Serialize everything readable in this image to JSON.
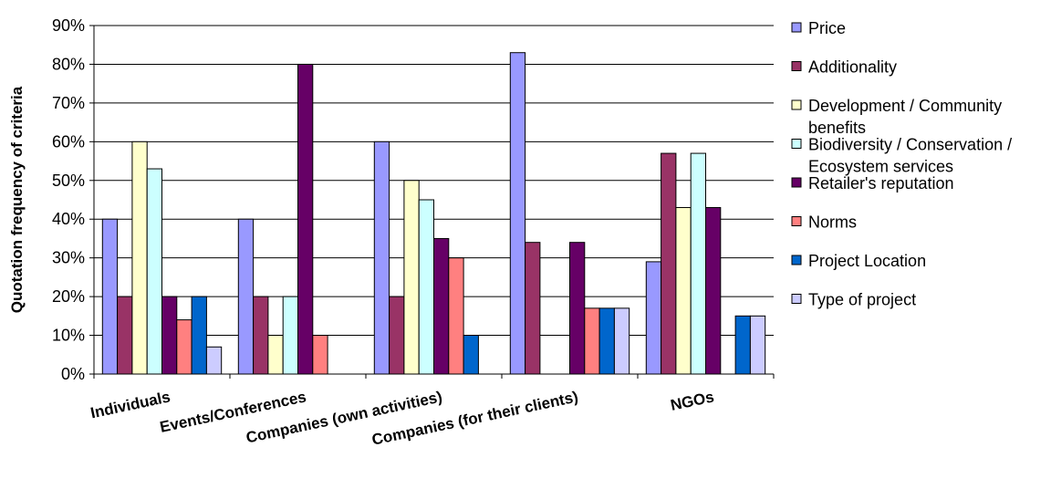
{
  "chart_data": {
    "type": "bar",
    "ylabel": "Quotation frequency of criteria",
    "xlabel": "",
    "ylim": [
      0,
      90
    ],
    "y_ticks": [
      "0%",
      "10%",
      "20%",
      "30%",
      "40%",
      "50%",
      "60%",
      "70%",
      "80%",
      "90%"
    ],
    "grid": "horizontal",
    "legend_position": "right",
    "categories": [
      "Individuals",
      "Events/Conferences",
      "Companies (own activities)",
      "Companies (for their clients)",
      "NGOs"
    ],
    "series": [
      {
        "name": "Price",
        "color": "#9999ff",
        "values": [
          40,
          40,
          60,
          83,
          29
        ]
      },
      {
        "name": "Additionality",
        "color": "#993366",
        "values": [
          20,
          20,
          20,
          34,
          57
        ]
      },
      {
        "name": "Development / Community benefits",
        "legend_lines": [
          "Development / Community",
          "benefits"
        ],
        "color": "#ffffcc",
        "values": [
          60,
          10,
          50,
          0,
          43
        ]
      },
      {
        "name": "Biodiversity / Conservation / Ecosystem services",
        "legend_lines": [
          "Biodiversity / Conservation /",
          "Ecosystem services"
        ],
        "color": "#ccffff",
        "values": [
          53,
          20,
          45,
          0,
          57
        ]
      },
      {
        "name": "Retailer's reputation",
        "color": "#660066",
        "values": [
          20,
          80,
          35,
          34,
          43
        ]
      },
      {
        "name": "Norms",
        "color": "#ff8080",
        "values": [
          14,
          10,
          30,
          17,
          0
        ]
      },
      {
        "name": "Project Location",
        "color": "#0066cc",
        "values": [
          20,
          0,
          10,
          17,
          15
        ]
      },
      {
        "name": "Type of project",
        "color": "#ccccff",
        "values": [
          7,
          0,
          0,
          17,
          15
        ]
      }
    ]
  }
}
